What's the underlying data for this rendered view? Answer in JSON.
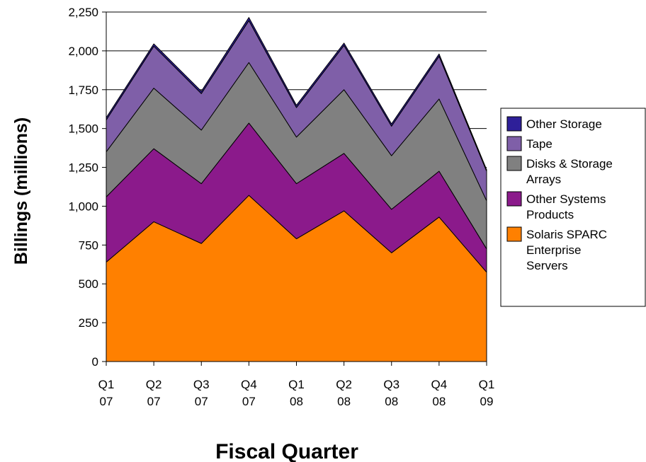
{
  "chart_data": {
    "type": "area",
    "stacked": true,
    "title": "",
    "xlabel": "Fiscal Quarter",
    "ylabel": "Billings (millions)",
    "ylim": [
      0,
      2250
    ],
    "yticks": [
      "0",
      "250",
      "500",
      "750",
      "1,000",
      "1,250",
      "1,500",
      "1,750",
      "2,000",
      "2,250"
    ],
    "categories": [
      [
        "Q1",
        "07"
      ],
      [
        "Q2",
        "07"
      ],
      [
        "Q3",
        "07"
      ],
      [
        "Q4",
        "07"
      ],
      [
        "Q1",
        "08"
      ],
      [
        "Q2",
        "08"
      ],
      [
        "Q3",
        "08"
      ],
      [
        "Q4",
        "08"
      ],
      [
        "Q1",
        "09"
      ]
    ],
    "grid": "horizontal",
    "legend_position": "right",
    "series": [
      {
        "name": "Solaris SPARC Enterprise Servers",
        "legend_lines": [
          "Solaris SPARC",
          "Enterprise",
          "Servers"
        ],
        "color": "#ff8000",
        "values": [
          640,
          900,
          760,
          1070,
          790,
          970,
          700,
          930,
          575
        ]
      },
      {
        "name": "Other Systems Products",
        "legend_lines": [
          "Other Systems",
          "Products"
        ],
        "color": "#8b1a8b",
        "values": [
          420,
          470,
          385,
          465,
          355,
          370,
          280,
          295,
          150
        ]
      },
      {
        "name": "Disks & Storage Arrays",
        "legend_lines": [
          "Disks & Storage",
          "Arrays"
        ],
        "color": "#808080",
        "values": [
          290,
          390,
          345,
          390,
          300,
          410,
          345,
          465,
          310
        ]
      },
      {
        "name": "Tape",
        "legend_lines": [
          "Tape"
        ],
        "color": "#7f5fa8",
        "values": [
          205,
          270,
          235,
          270,
          190,
          285,
          190,
          275,
          190
        ]
      },
      {
        "name": "Other Storage",
        "legend_lines": [
          "Other Storage"
        ],
        "color": "#2e1f99",
        "values": [
          15,
          15,
          15,
          20,
          15,
          15,
          15,
          15,
          10
        ]
      }
    ]
  }
}
